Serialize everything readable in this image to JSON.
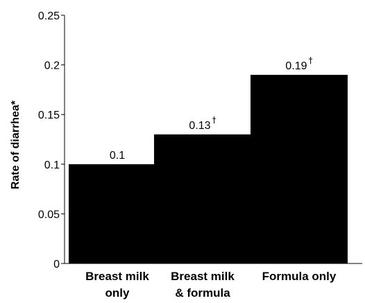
{
  "chart_data": {
    "type": "bar",
    "categories": [
      [
        "Breast milk",
        "only"
      ],
      [
        "Breast milk",
        "& formula"
      ],
      [
        "Formula only"
      ]
    ],
    "values": [
      0.1,
      0.13,
      0.19
    ],
    "data_labels": [
      "0.1",
      "0.13",
      "0.19"
    ],
    "label_marks": [
      "",
      "†",
      "†"
    ],
    "ylabel": "Rate of diarrhea*",
    "xlabel": "",
    "ylim": [
      0,
      0.25
    ],
    "yticks": [
      {
        "value": 0,
        "label": "0"
      },
      {
        "value": 0.05,
        "label": "0.05"
      },
      {
        "value": 0.1,
        "label": "0.1"
      },
      {
        "value": 0.15,
        "label": "0.15"
      },
      {
        "value": 0.2,
        "label": "0.2"
      },
      {
        "value": 0.25,
        "label": "0.25"
      }
    ],
    "grid": false,
    "bar_color": "#000000"
  }
}
